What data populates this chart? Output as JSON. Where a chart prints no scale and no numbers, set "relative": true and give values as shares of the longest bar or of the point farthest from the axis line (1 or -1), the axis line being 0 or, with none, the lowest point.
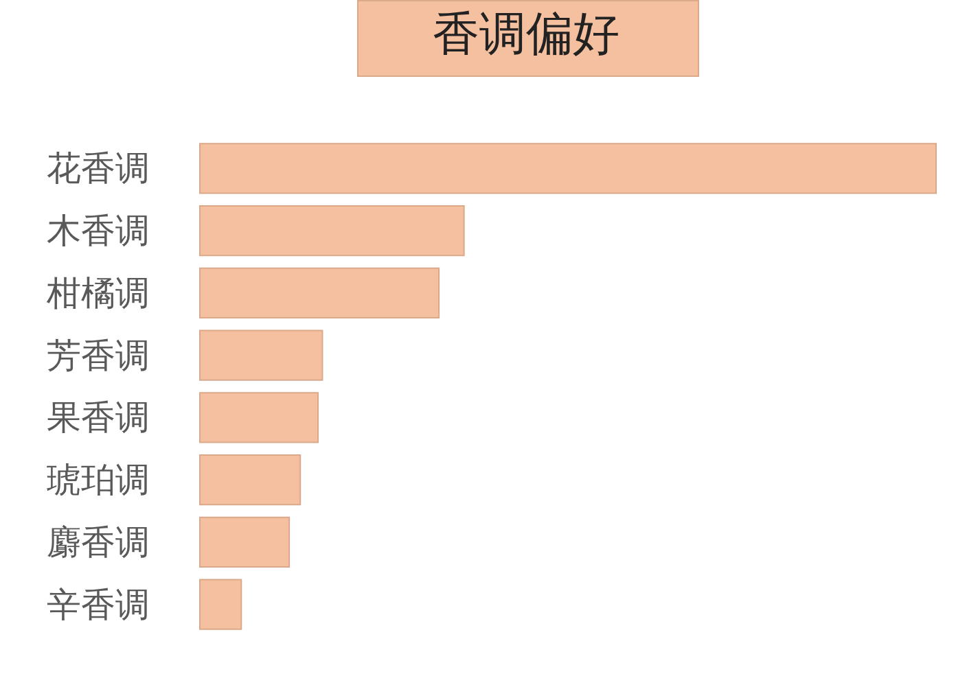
{
  "chart_data": {
    "type": "bar",
    "title": "香调偏好",
    "orientation": "horizontal",
    "relative": true,
    "categories": [
      "花香调",
      "木香调",
      "柑橘调",
      "芳香调",
      "果香调",
      "琥珀调",
      "麝香调",
      "辛香调"
    ],
    "values": [
      1,
      0.36,
      0.326,
      0.168,
      0.162,
      0.138,
      0.123,
      0.058
    ],
    "color": "#f4c0a0"
  }
}
